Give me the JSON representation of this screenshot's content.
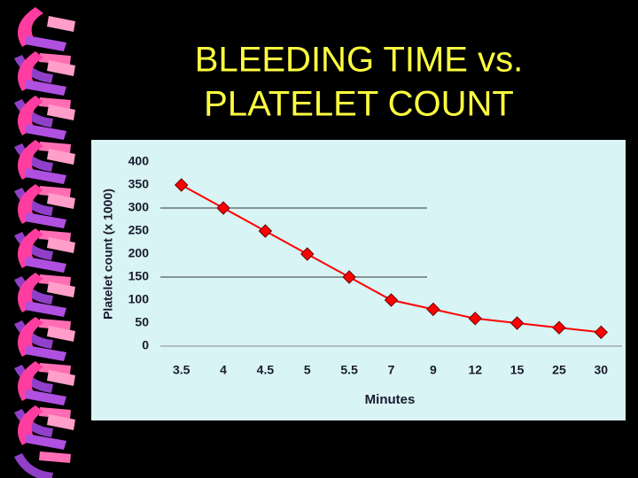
{
  "chart_data": {
    "type": "line",
    "title": [
      "BLEEDING TIME vs.",
      "PLATELET COUNT"
    ],
    "x_label": "Minutes",
    "y_label": "Platelet count (x 1000)",
    "categories": [
      "3.5",
      "4",
      "4.5",
      "5",
      "5.5",
      "7",
      "9",
      "12",
      "15",
      "25",
      "30"
    ],
    "values": [
      350,
      300,
      250,
      200,
      150,
      100,
      80,
      60,
      50,
      40,
      30
    ],
    "color": "#ff0000",
    "ylim": [
      0,
      400
    ],
    "yticks": [
      0,
      50,
      100,
      150,
      200,
      250,
      300,
      350,
      400
    ],
    "grid_lines": [
      300,
      150
    ]
  }
}
